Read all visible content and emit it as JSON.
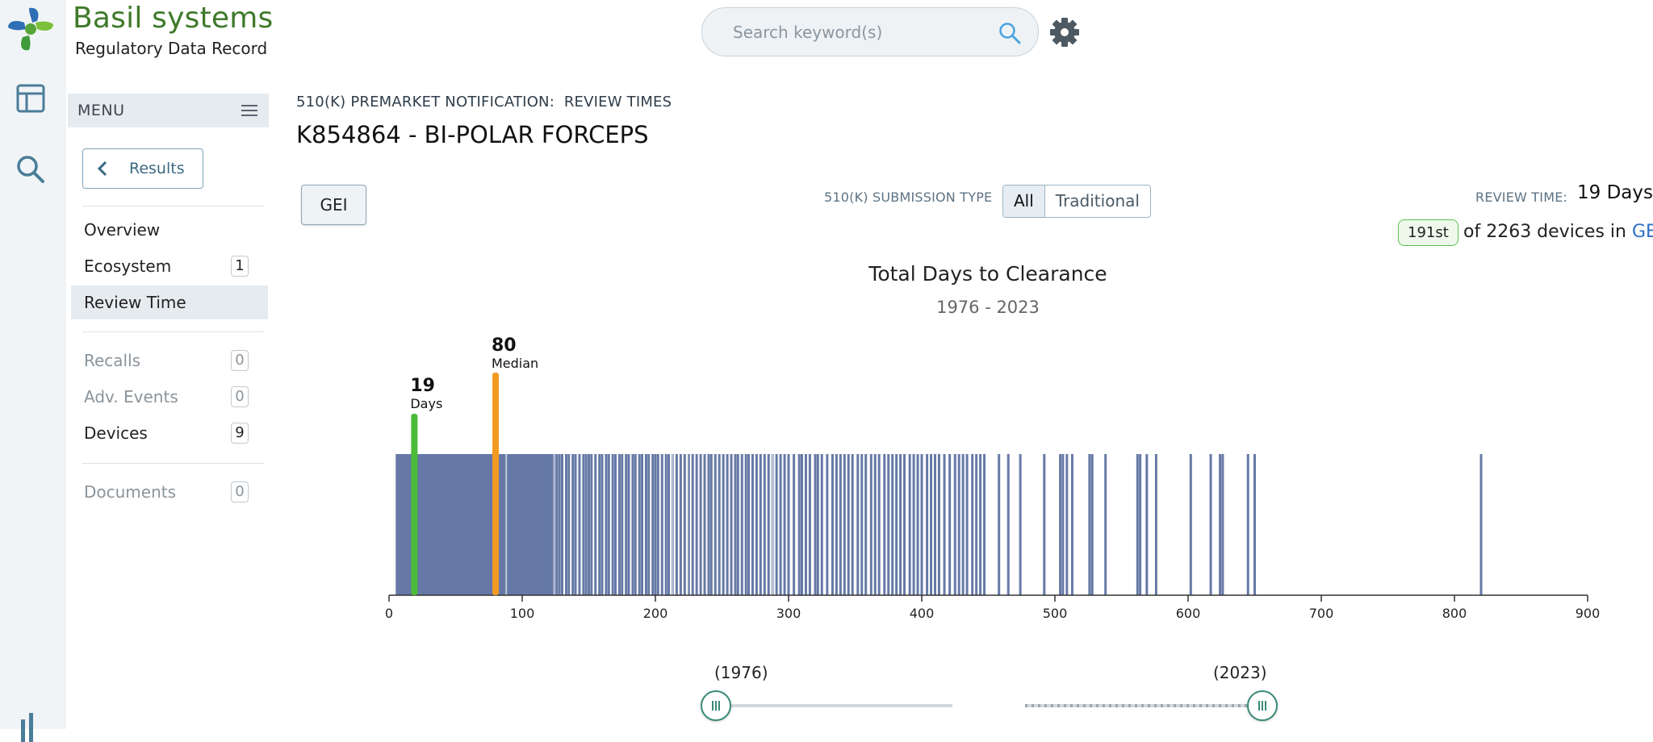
{
  "brand": {
    "title": "Basil systems",
    "subtitle": "Regulatory Data Record"
  },
  "search": {
    "placeholder": "Search keyword(s)",
    "value": ""
  },
  "rail_icons": [
    "table-icon",
    "search-icon",
    "chart-icon"
  ],
  "sidebar": {
    "menu_label": "MENU",
    "results_label": "Results",
    "items": [
      {
        "label": "Overview",
        "count": null,
        "active": false,
        "dim": false
      },
      {
        "label": "Ecosystem",
        "count": "1",
        "active": false,
        "dim": false
      },
      {
        "label": "Review Time",
        "count": null,
        "active": true,
        "dim": false
      },
      {
        "label": "Recalls",
        "count": "0",
        "active": false,
        "dim": true
      },
      {
        "label": "Adv. Events",
        "count": "0",
        "active": false,
        "dim": true
      },
      {
        "label": "Devices",
        "count": "9",
        "active": false,
        "dim": false
      },
      {
        "label": "Documents",
        "count": "0",
        "active": false,
        "dim": true
      }
    ]
  },
  "main": {
    "breadcrumb": "510(K) PREMARKET NOTIFICATION:  REVIEW TIMES",
    "title": "K854864 - BI-POLAR FORCEPS",
    "gei_button": "GEI",
    "submission_type_label": "510(K) SUBMISSION TYPE",
    "submission_type_options": [
      "All",
      "Traditional"
    ],
    "submission_type_selected": "All",
    "review_time_label": "REVIEW TIME:",
    "review_time_value": "19 Days",
    "rank_badge": "191st",
    "rank_text": "of 2263 devices in",
    "rank_link": "GEI"
  },
  "colors": {
    "bars": "#6679a6",
    "device_marker": "#4cbb3a",
    "median_marker": "#f39a24",
    "brand_green": "#3f7a2a"
  },
  "chart_data": {
    "type": "bar",
    "title": "Total Days to Clearance",
    "subtitle": "1976 - 2023",
    "xlim": [
      0,
      900
    ],
    "xticks": [
      "0",
      "100",
      "200",
      "300",
      "400",
      "500",
      "600",
      "700",
      "800",
      "900"
    ],
    "dense_range": [
      5,
      125
    ],
    "device_value": 19,
    "device_value_label": "19",
    "device_label": "Days",
    "median_value": 80,
    "median_value_label": "80",
    "median_label": "Median",
    "sparse_values": [
      126,
      128,
      130,
      133,
      135,
      138,
      140,
      143,
      146,
      148,
      150,
      152,
      155,
      158,
      160,
      163,
      165,
      168,
      170,
      173,
      175,
      178,
      180,
      183,
      185,
      188,
      190,
      193,
      195,
      198,
      200,
      202,
      205,
      208,
      210,
      213,
      216,
      219,
      222,
      225,
      228,
      231,
      234,
      237,
      240,
      242,
      245,
      248,
      251,
      254,
      257,
      260,
      262,
      265,
      268,
      270,
      273,
      276,
      279,
      282,
      285,
      288,
      291,
      294,
      297,
      300,
      304,
      308,
      310,
      313,
      316,
      320,
      322,
      325,
      329,
      333,
      336,
      339,
      342,
      345,
      348,
      352,
      355,
      358,
      362,
      365,
      368,
      372,
      375,
      378,
      381,
      384,
      387,
      391,
      394,
      397,
      400,
      404,
      407,
      410,
      413,
      417,
      421,
      425,
      428,
      431,
      434,
      438,
      441,
      444,
      447,
      458,
      465,
      474,
      492,
      504,
      506,
      509,
      513,
      526,
      528,
      538,
      562,
      564,
      569,
      576,
      602,
      617,
      624,
      626,
      645,
      650,
      820
    ]
  },
  "slider": {
    "start_label": "(1976)",
    "end_label": "(2023)"
  }
}
